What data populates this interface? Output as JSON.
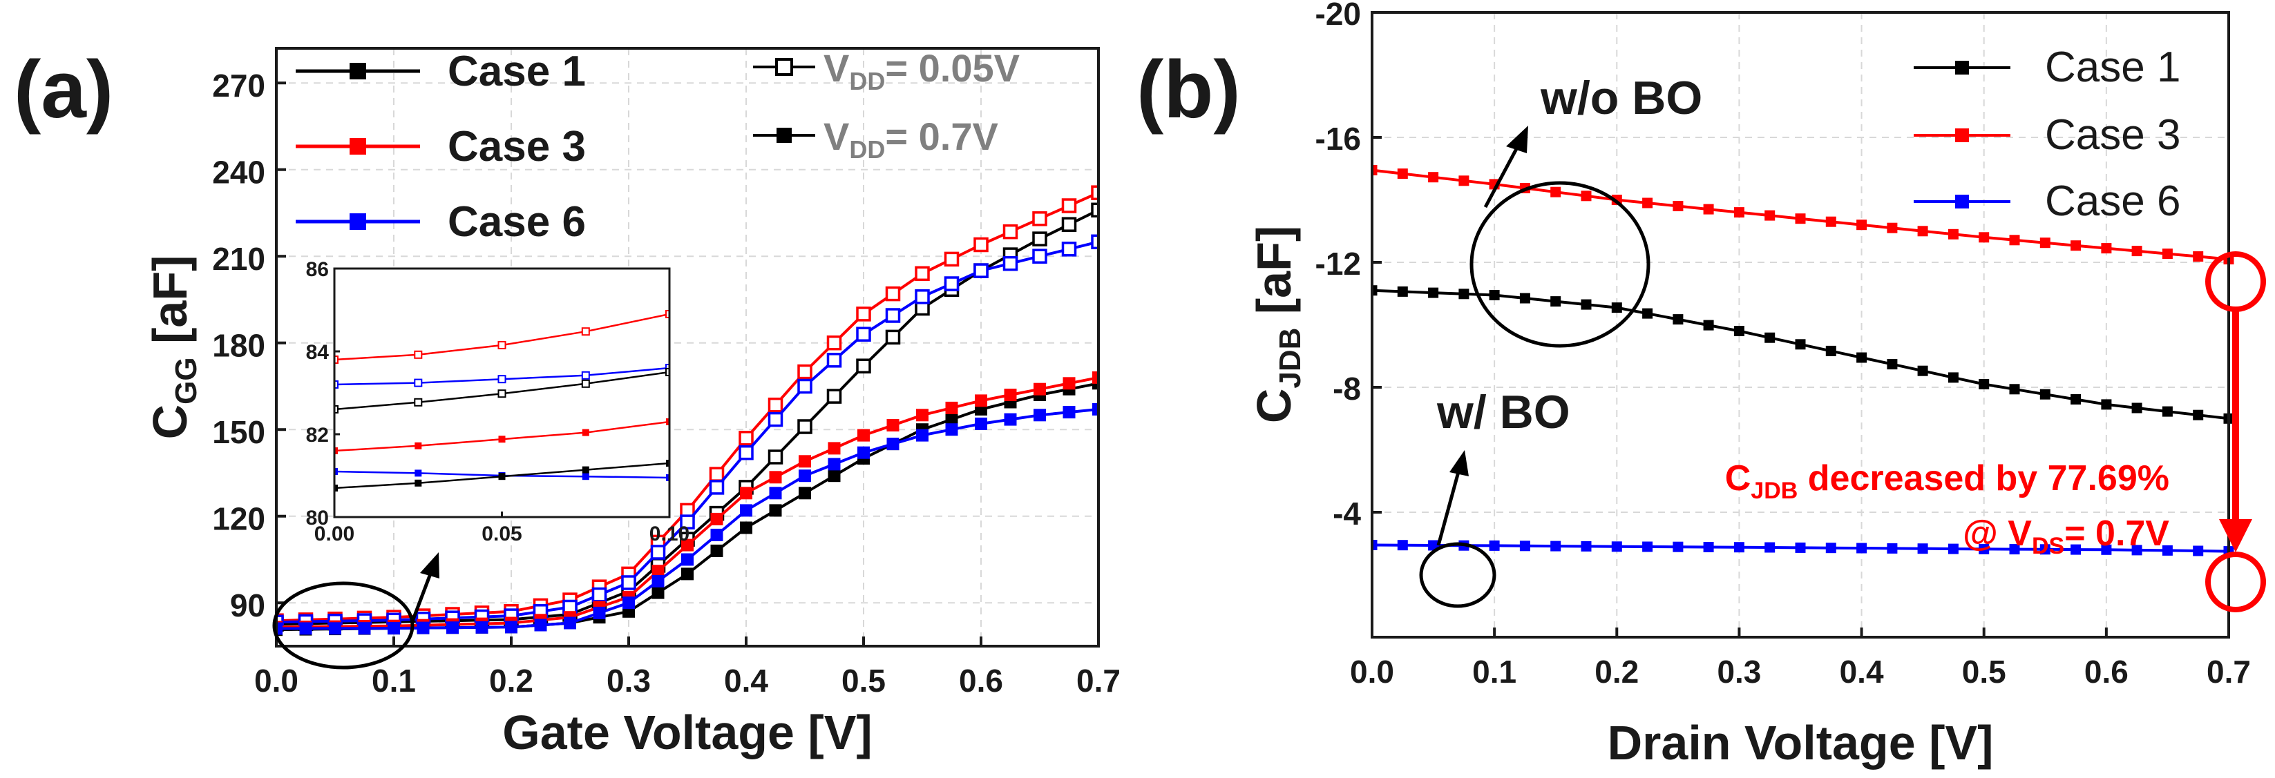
{
  "chart_data": [
    {
      "id": "a",
      "type": "line",
      "panel_label": "(a)",
      "xlabel": "Gate Voltage [V]",
      "ylabel": "C",
      "ylabel_sub": "GG",
      "ylabel_unit": " [aF]",
      "xlim": [
        0,
        0.7
      ],
      "ylim": [
        75,
        282
      ],
      "xticks": [
        "0.0",
        "0.1",
        "0.2",
        "0.3",
        "0.4",
        "0.5",
        "0.6",
        "0.7"
      ],
      "yticks": [
        "90",
        "120",
        "150",
        "180",
        "210",
        "240",
        "270"
      ],
      "legend_cases": [
        "Case 1",
        "Case 3",
        "Case 6"
      ],
      "legend_vdd": [
        {
          "pre": "V",
          "sub": "DD",
          "post": "= 0.05V",
          "marker": "open"
        },
        {
          "pre": "V",
          "sub": "DD",
          "post": "= 0.7V",
          "marker": "filled"
        }
      ],
      "series": [
        {
          "name": "Case 1, VDD=0.05V",
          "color": "#000000",
          "marker": "open",
          "x": [
            0,
            0.1,
            0.2,
            0.25,
            0.3,
            0.35,
            0.4,
            0.45,
            0.5,
            0.55,
            0.6,
            0.65,
            0.7
          ],
          "y": [
            82.6,
            83.4,
            84.2,
            86,
            94,
            112,
            130,
            151,
            172,
            192,
            205,
            216,
            226
          ]
        },
        {
          "name": "Case 3, VDD=0.05V",
          "color": "#ff0000",
          "marker": "open",
          "x": [
            0,
            0.1,
            0.2,
            0.25,
            0.3,
            0.35,
            0.4,
            0.45,
            0.5,
            0.55,
            0.6,
            0.65,
            0.7
          ],
          "y": [
            83.8,
            85,
            87,
            91,
            100,
            122,
            147,
            170,
            190,
            204,
            214,
            223,
            232
          ]
        },
        {
          "name": "Case 6, VDD=0.05V",
          "color": "#0000ff",
          "marker": "open",
          "x": [
            0,
            0.1,
            0.2,
            0.25,
            0.3,
            0.35,
            0.4,
            0.45,
            0.5,
            0.55,
            0.6,
            0.65,
            0.7
          ],
          "y": [
            83.3,
            84,
            85.5,
            88.5,
            97,
            118,
            142,
            165,
            183,
            196,
            205,
            210,
            215
          ]
        },
        {
          "name": "Case 1, VDD=0.7V",
          "color": "#000000",
          "marker": "filled",
          "x": [
            0,
            0.1,
            0.2,
            0.25,
            0.3,
            0.35,
            0.4,
            0.45,
            0.5,
            0.55,
            0.6,
            0.65,
            0.7
          ],
          "y": [
            80.7,
            81.2,
            81.6,
            83,
            87,
            100,
            116,
            128,
            140,
            150,
            157,
            162,
            166
          ]
        },
        {
          "name": "Case 3, VDD=0.7V",
          "color": "#ff0000",
          "marker": "filled",
          "x": [
            0,
            0.1,
            0.2,
            0.25,
            0.3,
            0.35,
            0.4,
            0.45,
            0.5,
            0.55,
            0.6,
            0.65,
            0.7
          ],
          "y": [
            81.6,
            82,
            83,
            85,
            92,
            110,
            128,
            139,
            148,
            155,
            160,
            164,
            168
          ]
        },
        {
          "name": "Case 6, VDD=0.7V",
          "color": "#0000ff",
          "marker": "filled",
          "x": [
            0,
            0.1,
            0.2,
            0.25,
            0.3,
            0.35,
            0.4,
            0.45,
            0.5,
            0.55,
            0.6,
            0.65,
            0.7
          ],
          "y": [
            81.1,
            81.2,
            81.6,
            83,
            90,
            105,
            122,
            134,
            142,
            148,
            152,
            155,
            157
          ]
        }
      ],
      "inset": {
        "xlim": [
          0,
          0.1
        ],
        "ylim": [
          80,
          86
        ],
        "xticks": [
          "0.00",
          "0.05",
          "0.10"
        ],
        "yticks": [
          "80",
          "82",
          "84",
          "86"
        ],
        "series": [
          {
            "color": "#ff0000",
            "marker": "open",
            "x": [
              0,
              0.025,
              0.05,
              0.075,
              0.1
            ],
            "y": [
              83.8,
              83.92,
              84.15,
              84.48,
              84.9
            ]
          },
          {
            "color": "#0000ff",
            "marker": "open",
            "x": [
              0,
              0.025,
              0.05,
              0.075,
              0.1
            ],
            "y": [
              83.2,
              83.24,
              83.33,
              83.42,
              83.6
            ]
          },
          {
            "color": "#000000",
            "marker": "open",
            "x": [
              0,
              0.025,
              0.05,
              0.075,
              0.1
            ],
            "y": [
              82.6,
              82.77,
              82.98,
              83.22,
              83.5
            ]
          },
          {
            "color": "#ff0000",
            "marker": "filled",
            "x": [
              0,
              0.025,
              0.05,
              0.075,
              0.1
            ],
            "y": [
              81.6,
              81.72,
              81.88,
              82.04,
              82.3
            ]
          },
          {
            "color": "#0000ff",
            "marker": "filled",
            "x": [
              0,
              0.025,
              0.05,
              0.075,
              0.1
            ],
            "y": [
              81.1,
              81.06,
              81.0,
              80.98,
              80.95
            ]
          },
          {
            "color": "#000000",
            "marker": "filled",
            "x": [
              0,
              0.025,
              0.05,
              0.075,
              0.1
            ],
            "y": [
              80.7,
              80.82,
              80.98,
              81.14,
              81.3
            ]
          }
        ]
      }
    },
    {
      "id": "b",
      "type": "line",
      "panel_label": "(b)",
      "xlabel": "Drain Voltage [V]",
      "ylabel": "C",
      "ylabel_sub": "JDB",
      "ylabel_unit": " [aF]",
      "xlim": [
        0,
        0.7
      ],
      "ylim": [
        -20,
        0
      ],
      "xticks": [
        "0.0",
        "0.1",
        "0.2",
        "0.3",
        "0.4",
        "0.5",
        "0.6",
        "0.7"
      ],
      "yticks": [
        "-4",
        "-8",
        "-12",
        "-16",
        "-20"
      ],
      "legend_cases": [
        "Case 1",
        "Case 3",
        "Case 6"
      ],
      "series": [
        {
          "name": "Case 1",
          "color": "#000000",
          "marker": "filled",
          "x": [
            0,
            0.1,
            0.2,
            0.3,
            0.4,
            0.5,
            0.6,
            0.7
          ],
          "y": [
            -11.1,
            -10.95,
            -10.55,
            -9.8,
            -8.95,
            -8.1,
            -7.45,
            -7.0
          ]
        },
        {
          "name": "Case 3",
          "color": "#ff0000",
          "marker": "filled",
          "x": [
            0,
            0.1,
            0.2,
            0.3,
            0.4,
            0.5,
            0.6,
            0.7
          ],
          "y": [
            -14.95,
            -14.5,
            -14.0,
            -13.6,
            -13.2,
            -12.8,
            -12.45,
            -12.1
          ]
        },
        {
          "name": "Case 6",
          "color": "#0000ff",
          "marker": "filled",
          "x": [
            0,
            0.1,
            0.2,
            0.3,
            0.4,
            0.5,
            0.6,
            0.7
          ],
          "y": [
            -2.95,
            -2.93,
            -2.9,
            -2.88,
            -2.85,
            -2.82,
            -2.8,
            -2.75
          ]
        }
      ],
      "annotations": {
        "wo_bo": "w/o BO",
        "w_bo": "w/ BO",
        "decrease_pre": "C",
        "decrease_sub": "JDB",
        "decrease_post": " decreased by 77.69%",
        "at_pre": "@ V",
        "at_sub": "DS",
        "at_post": "= 0.7V"
      }
    }
  ]
}
